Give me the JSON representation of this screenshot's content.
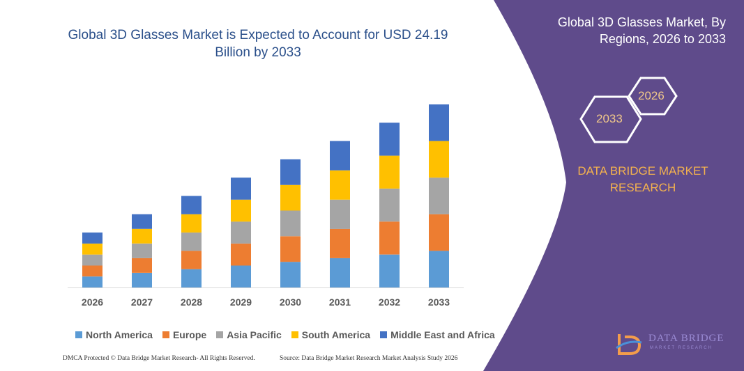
{
  "chart_title": "Global 3D Glasses Market is Expected to Account for USD 24.19 Billion by 2033",
  "panel": {
    "title": "Global 3D Glasses Market, By Regions, 2026 to 2033",
    "hex_start": "2026",
    "hex_end": "2033",
    "brand": "DATA BRIDGE MARKET RESEARCH",
    "logo_text": "DATA BRIDGE",
    "logo_sub": "MARKET RESEARCH",
    "background_color": "#5f4b8b"
  },
  "footer": {
    "left": "DMCA Protected © Data Bridge Market Research- All Rights Reserved.",
    "right": "Source: Data Bridge Market Research Market Analysis Study 2026"
  },
  "chart_data": {
    "type": "bar",
    "stacked": true,
    "categories": [
      "2026",
      "2027",
      "2028",
      "2029",
      "2030",
      "2031",
      "2032",
      "2033"
    ],
    "series": [
      {
        "name": "North America",
        "color": "#5b9bd5",
        "values": [
          3,
          4,
          5,
          6,
          7,
          8,
          9,
          10
        ]
      },
      {
        "name": "Europe",
        "color": "#ed7d31",
        "values": [
          3,
          4,
          5,
          6,
          7,
          8,
          9,
          10
        ]
      },
      {
        "name": "Asia Pacific",
        "color": "#a5a5a5",
        "values": [
          3,
          4,
          5,
          6,
          7,
          8,
          9,
          10
        ]
      },
      {
        "name": "South America",
        "color": "#ffc000",
        "values": [
          3,
          4,
          5,
          6,
          7,
          8,
          9,
          10
        ]
      },
      {
        "name": "Middle East and Africa",
        "color": "#4472c4",
        "values": [
          3,
          4,
          5,
          6,
          7,
          8,
          9,
          10
        ]
      }
    ],
    "ylim": [
      0,
      50
    ],
    "grid": false,
    "legend_position": "bottom"
  }
}
